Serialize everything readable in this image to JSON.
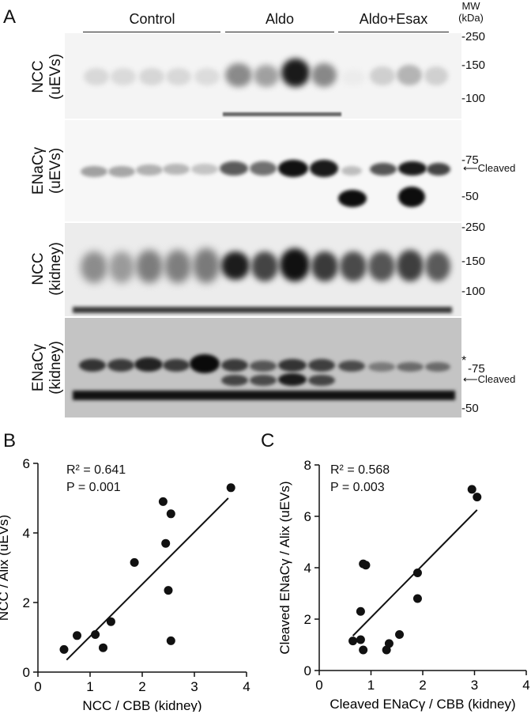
{
  "panelA": {
    "letter": "A",
    "groups": [
      "Control",
      "Aldo",
      "Aldo+Esax"
    ],
    "mw_header": [
      "MW",
      "(kDa)"
    ],
    "rows": [
      {
        "label1": "NCC",
        "label2": "(uEVs)",
        "markers": [
          "-250",
          "-150",
          "-100"
        ]
      },
      {
        "label1": "ENaCγ",
        "label2": "(uEVs)",
        "markers": [
          "-75",
          "-50"
        ],
        "arrow": "Cleaved"
      },
      {
        "label1": "NCC",
        "label2": "(kidney)",
        "markers": [
          "-250",
          "-150",
          "-100"
        ]
      },
      {
        "label1": "ENaCγ",
        "label2": "(kidney)",
        "markers": [
          "-75",
          "-50"
        ],
        "arrow": "Cleaved",
        "star": "*"
      }
    ]
  },
  "panelB": {
    "letter": "B",
    "r2": "R² = 0.641",
    "p": "P = 0.001",
    "xlabel": "NCC / CBB (kidney)",
    "ylabel": "NCC / Alix (uEVs)"
  },
  "panelC": {
    "letter": "C",
    "r2": "R² = 0.568",
    "p": "P = 0.003",
    "xlabel": "Cleaved ENaCγ / CBB (kidney)",
    "ylabel": "Cleaved ENaCγ / Alix (uEVs)"
  },
  "chart_data": [
    {
      "type": "scatter",
      "xlabel": "NCC / CBB (kidney)",
      "ylabel": "NCC / Alix (uEVs)",
      "xlim": [
        0,
        4
      ],
      "ylim": [
        0,
        6
      ],
      "xticks": [
        0,
        1,
        2,
        3,
        4
      ],
      "yticks": [
        0,
        2,
        4,
        6
      ],
      "x": [
        0.5,
        0.75,
        1.1,
        1.25,
        1.4,
        1.85,
        2.4,
        2.45,
        2.5,
        2.55,
        2.55,
        3.7
      ],
      "y": [
        0.65,
        1.05,
        1.08,
        0.7,
        1.45,
        3.15,
        4.9,
        3.7,
        2.35,
        4.55,
        0.9,
        5.3
      ],
      "fit": {
        "x": [
          0.55,
          3.65
        ],
        "y": [
          0.35,
          5.0
        ]
      },
      "annotations": [
        "R² = 0.641",
        "P = 0.001"
      ]
    },
    {
      "type": "scatter",
      "xlabel": "Cleaved ENaCγ / CBB (kidney)",
      "ylabel": "Cleaved ENaCγ / Alix (uEVs)",
      "xlim": [
        0,
        4
      ],
      "ylim": [
        0,
        8
      ],
      "xticks": [
        0,
        1,
        2,
        3,
        4
      ],
      "yticks": [
        0,
        2,
        4,
        6,
        8
      ],
      "x": [
        0.65,
        0.8,
        0.8,
        0.85,
        0.85,
        0.9,
        1.3,
        1.35,
        1.55,
        1.9,
        1.9,
        2.95,
        3.05
      ],
      "y": [
        1.15,
        1.2,
        2.3,
        4.15,
        0.8,
        4.1,
        0.8,
        1.05,
        1.4,
        3.8,
        2.8,
        7.05,
        6.75
      ],
      "fit": {
        "x": [
          0.65,
          3.05
        ],
        "y": [
          1.35,
          6.25
        ]
      },
      "annotations": [
        "R² = 0.568",
        "P = 0.003"
      ]
    }
  ]
}
